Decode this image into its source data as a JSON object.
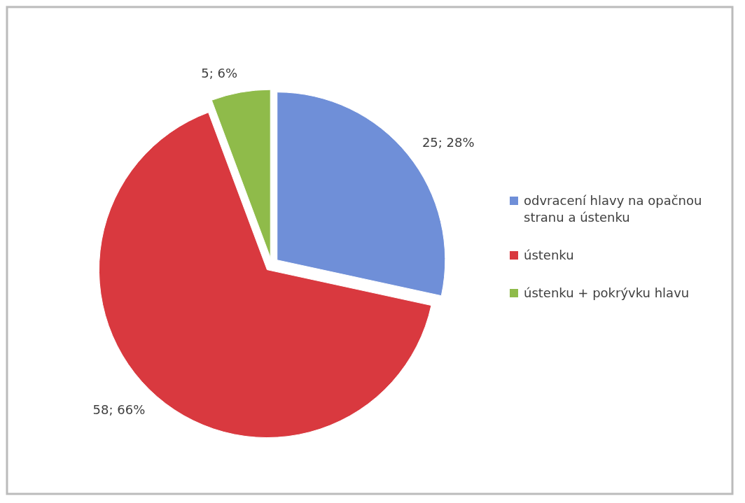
{
  "chart_data": {
    "type": "pie",
    "categories": [
      "odvracení hlavy na opačnou stranu a ústenku",
      "ústenku",
      "ústenku + pokrývku hlavu"
    ],
    "values": [
      25,
      58,
      5
    ],
    "colors": [
      "#6f8fd8",
      "#d9393f",
      "#8fbb4a"
    ],
    "value_labels": [
      "25; 28%",
      "58; 66%",
      "5; 6%"
    ],
    "legend": "right"
  }
}
